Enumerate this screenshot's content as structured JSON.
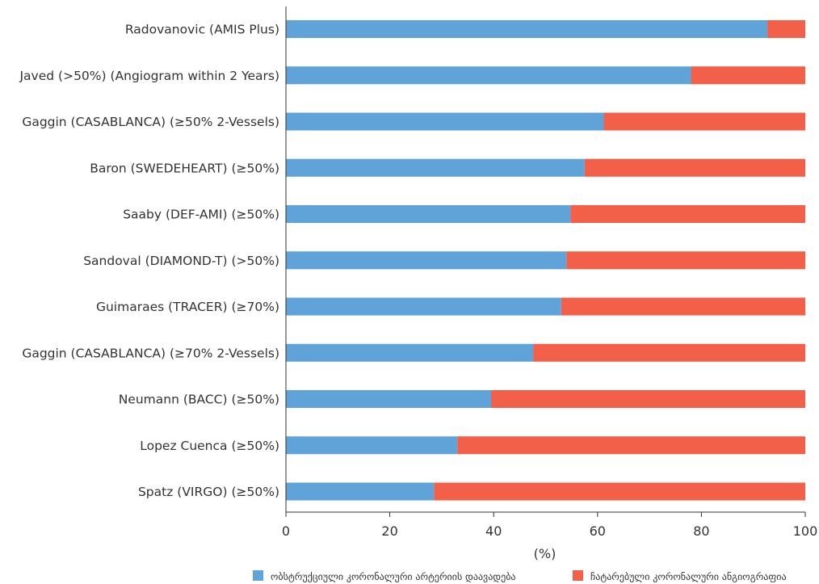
{
  "chart_data": {
    "type": "bar",
    "orientation": "horizontal",
    "stacked": true,
    "categories": [
      "Radovanovic (AMIS Plus)",
      "Javed (>50%) (Angiogram within 2 Years)",
      "Gaggin (CASABLANCA) (≥50% 2-Vessels)",
      "Baron (SWEDEHEART) (≥50%)",
      "Saaby (DEF-AMI) (≥50%)",
      "Sandoval (DIAMOND-T) (>50%)",
      "Guimaraes (TRACER) (≥70%)",
      "Gaggin (CASABLANCA) (≥70% 2-Vessels)",
      "Neumann (BACC) (≥50%)",
      "Lopez Cuenca (≥50%)",
      "Spatz (VIRGO) (≥50%)"
    ],
    "series": [
      {
        "name": "ობსტრუქციული კორონალური არტერიის დაავადება",
        "color": "#5fa3d9",
        "values": [
          92.7,
          78.0,
          61.2,
          57.5,
          54.8,
          54.0,
          53.0,
          47.6,
          39.5,
          33.0,
          28.5
        ]
      },
      {
        "name": "ჩატარებული კორონალური ანგიოგრაფია",
        "color": "#f2604a",
        "values": [
          7.3,
          22.0,
          38.8,
          42.5,
          45.2,
          46.0,
          47.0,
          52.4,
          60.5,
          67.0,
          71.5
        ]
      }
    ],
    "xlabel": "(%)",
    "xlim": [
      0,
      100
    ],
    "xticks": [
      "0",
      "20",
      "40",
      "60",
      "80",
      "100"
    ],
    "grid": false,
    "legend_position": "bottom"
  }
}
